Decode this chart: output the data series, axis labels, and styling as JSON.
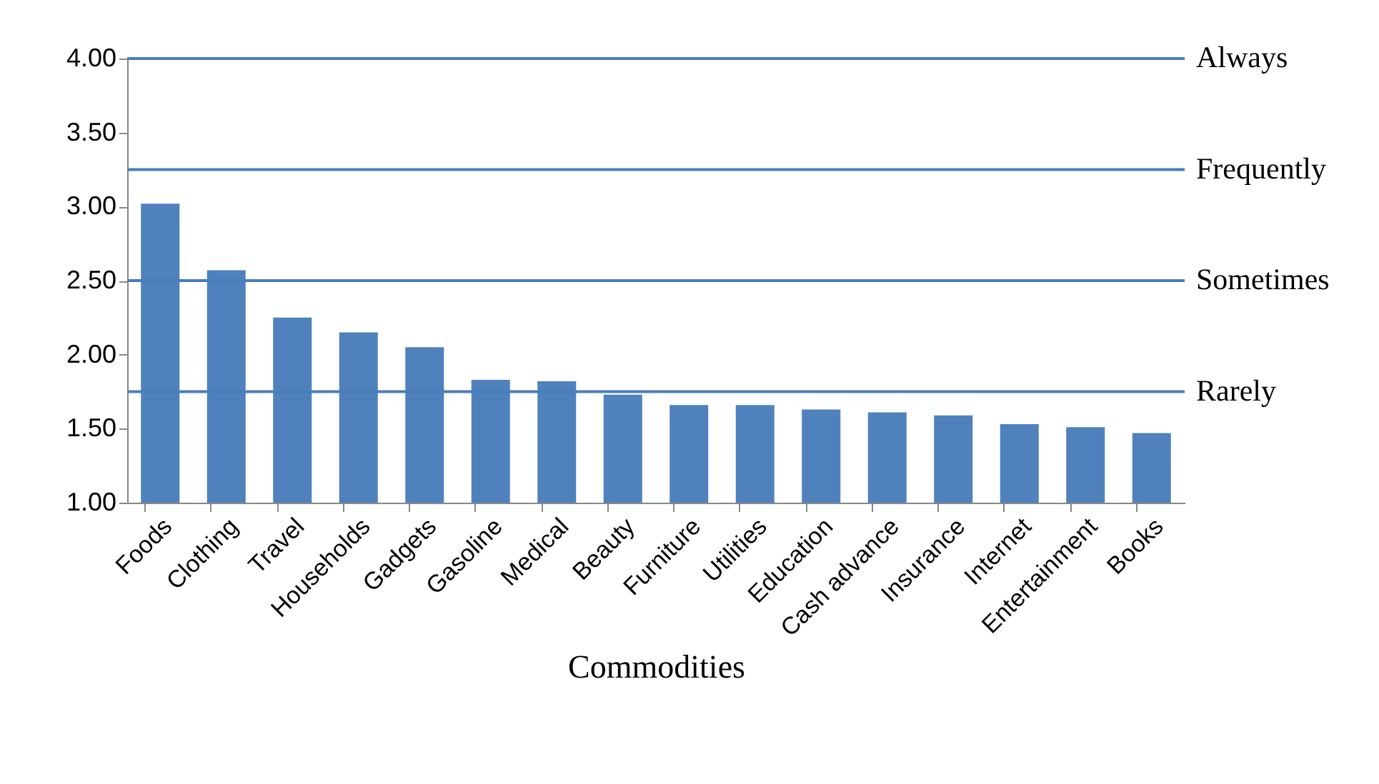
{
  "chart_data": {
    "type": "bar",
    "xlabel": "Commodities",
    "categories": [
      "Foods",
      "Clothing",
      "Travel",
      "Households",
      "Gadgets",
      "Gasoline",
      "Medical",
      "Beauty",
      "Furniture",
      "Utilities",
      "Education",
      "Cash advance",
      "Insurance",
      "Internet",
      "Entertainment",
      "Books"
    ],
    "values": [
      3.02,
      2.57,
      2.25,
      2.15,
      2.05,
      1.83,
      1.82,
      1.73,
      1.66,
      1.66,
      1.63,
      1.61,
      1.59,
      1.53,
      1.51,
      1.47
    ],
    "color": "#4f81bd",
    "ylim": [
      1,
      4
    ],
    "yticks": [
      {
        "value": 1,
        "label": "1.00"
      },
      {
        "value": 1.5,
        "label": "1.50"
      },
      {
        "value": 2,
        "label": "2.00"
      },
      {
        "value": 2.5,
        "label": "2.50"
      },
      {
        "value": 3,
        "label": "3.00"
      },
      {
        "value": 3.5,
        "label": "3.50"
      },
      {
        "value": 4,
        "label": "4.00"
      }
    ],
    "grid": false,
    "ref_lines": [
      {
        "axis": "y",
        "value": 4,
        "label": "Always",
        "color": "#4a7ebb"
      },
      {
        "axis": "y",
        "value": 3.25,
        "label": "Frequently",
        "color": "#4a7ebb"
      },
      {
        "axis": "y",
        "value": 2.5,
        "label": "Sometimes",
        "color": "#4a7ebb"
      },
      {
        "axis": "y",
        "value": 1.75,
        "label": "Rarely",
        "color": "#4a7ebb"
      }
    ]
  }
}
